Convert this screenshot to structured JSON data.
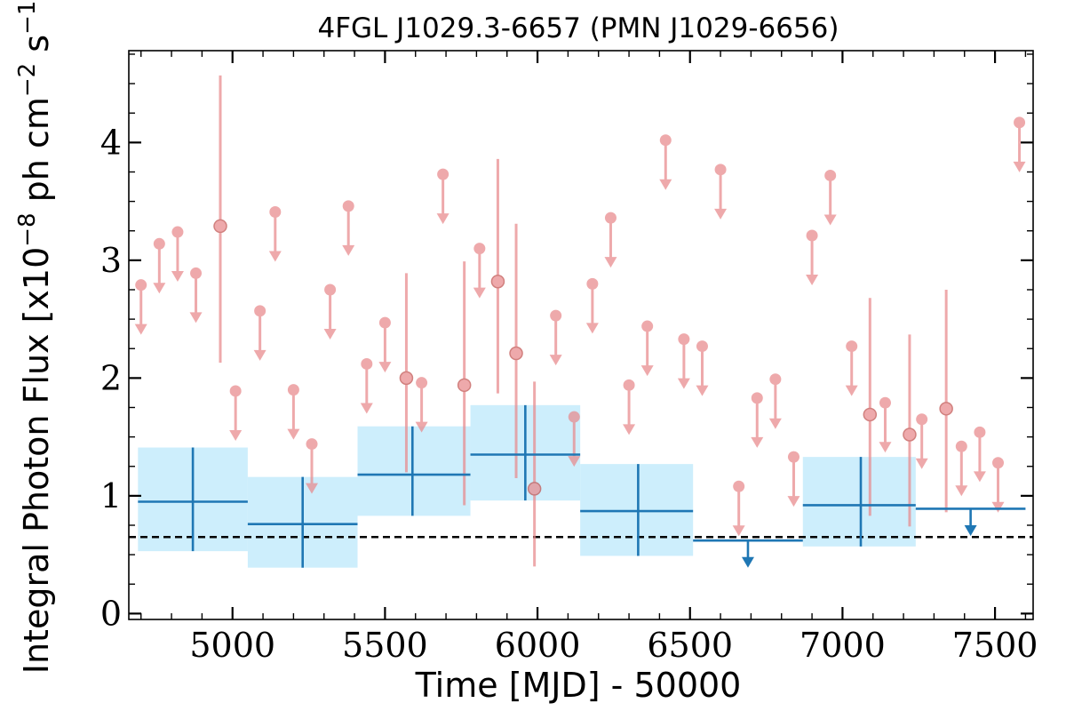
{
  "chart_data": {
    "type": "scatter",
    "title": "4FGL J1029.3-6657 (PMN J1029-6656)",
    "xlabel": "Time [MJD] - 50000",
    "ylabel_parts": {
      "prefix": "Integral Photon Flux [x10",
      "exp1": "−8",
      "mid": " ph cm",
      "exp2": "−2",
      "s": " s",
      "exp3": "−1",
      "suffix": "]"
    },
    "xlim": [
      4660,
      7625
    ],
    "ylim": [
      -0.05,
      4.78
    ],
    "xticks": [
      5000,
      5500,
      6000,
      6500,
      7000,
      7500
    ],
    "xtick_labels": [
      "5000",
      "5500",
      "6000",
      "6500",
      "7000",
      "7500"
    ],
    "yticks": [
      0,
      1,
      2,
      3,
      4
    ],
    "ytick_labels": [
      "0",
      "1",
      "2",
      "3",
      "4"
    ],
    "reference_line": {
      "y": 0.65,
      "style": "dashed",
      "color": "#000000"
    },
    "colors": {
      "short_bin": "#e8898c",
      "long_bin_line": "#1f77b4",
      "long_bin_fill": "#cdeefc",
      "reference": "#000000"
    },
    "short_bin_upper_limits": [
      {
        "x": 4700,
        "y": 2.79
      },
      {
        "x": 4760,
        "y": 3.14
      },
      {
        "x": 4820,
        "y": 3.24
      },
      {
        "x": 4880,
        "y": 2.89
      },
      {
        "x": 5010,
        "y": 1.89
      },
      {
        "x": 5090,
        "y": 2.57
      },
      {
        "x": 5140,
        "y": 3.41
      },
      {
        "x": 5200,
        "y": 1.9
      },
      {
        "x": 5260,
        "y": 1.44
      },
      {
        "x": 5320,
        "y": 2.75
      },
      {
        "x": 5380,
        "y": 3.46
      },
      {
        "x": 5440,
        "y": 2.12
      },
      {
        "x": 5500,
        "y": 2.47
      },
      {
        "x": 5620,
        "y": 1.96
      },
      {
        "x": 5690,
        "y": 3.73
      },
      {
        "x": 5810,
        "y": 3.1
      },
      {
        "x": 6060,
        "y": 2.53
      },
      {
        "x": 6120,
        "y": 1.67
      },
      {
        "x": 6180,
        "y": 2.8
      },
      {
        "x": 6240,
        "y": 3.36
      },
      {
        "x": 6300,
        "y": 1.94
      },
      {
        "x": 6360,
        "y": 2.44
      },
      {
        "x": 6420,
        "y": 4.02
      },
      {
        "x": 6480,
        "y": 2.33
      },
      {
        "x": 6540,
        "y": 2.27
      },
      {
        "x": 6600,
        "y": 3.77
      },
      {
        "x": 6660,
        "y": 1.08
      },
      {
        "x": 6720,
        "y": 1.83
      },
      {
        "x": 6780,
        "y": 1.99
      },
      {
        "x": 6840,
        "y": 1.33
      },
      {
        "x": 6900,
        "y": 3.21
      },
      {
        "x": 6960,
        "y": 3.72
      },
      {
        "x": 7030,
        "y": 2.27
      },
      {
        "x": 7140,
        "y": 1.79
      },
      {
        "x": 7260,
        "y": 1.65
      },
      {
        "x": 7390,
        "y": 1.42
      },
      {
        "x": 7450,
        "y": 1.54
      },
      {
        "x": 7510,
        "y": 1.28
      },
      {
        "x": 7580,
        "y": 4.17
      }
    ],
    "short_bin_detections": [
      {
        "x": 4960,
        "y": 3.29,
        "ylow": 2.13,
        "yhigh": 4.57
      },
      {
        "x": 5570,
        "y": 2.0,
        "ylow": 1.2,
        "yhigh": 2.89
      },
      {
        "x": 5760,
        "y": 1.94,
        "ylow": 0.92,
        "yhigh": 2.99
      },
      {
        "x": 5870,
        "y": 2.82,
        "ylow": 1.87,
        "yhigh": 3.86
      },
      {
        "x": 5930,
        "y": 2.21,
        "ylow": 1.15,
        "yhigh": 3.31
      },
      {
        "x": 5990,
        "y": 1.06,
        "ylow": 0.4,
        "yhigh": 1.97
      },
      {
        "x": 7090,
        "y": 1.69,
        "ylow": 0.83,
        "yhigh": 2.68
      },
      {
        "x": 7220,
        "y": 1.52,
        "ylow": 0.74,
        "yhigh": 2.37
      },
      {
        "x": 7340,
        "y": 1.74,
        "ylow": 0.86,
        "yhigh": 2.75
      }
    ],
    "long_bin_detections": [
      {
        "xlo": 4690,
        "xhi": 5050,
        "x": 4870,
        "y": 0.95,
        "ylow": 0.53,
        "yhigh": 1.41
      },
      {
        "xlo": 5050,
        "xhi": 5410,
        "x": 5230,
        "y": 0.76,
        "ylow": 0.39,
        "yhigh": 1.16
      },
      {
        "xlo": 5410,
        "xhi": 5780,
        "x": 5590,
        "y": 1.18,
        "ylow": 0.83,
        "yhigh": 1.59
      },
      {
        "xlo": 5780,
        "xhi": 6140,
        "x": 5960,
        "y": 1.35,
        "ylow": 0.96,
        "yhigh": 1.77
      },
      {
        "xlo": 6140,
        "xhi": 6510,
        "x": 6330,
        "y": 0.87,
        "ylow": 0.49,
        "yhigh": 1.27
      },
      {
        "xlo": 6870,
        "xhi": 7240,
        "x": 7060,
        "y": 0.92,
        "ylow": 0.57,
        "yhigh": 1.33
      }
    ],
    "long_bin_upper_limits": [
      {
        "xlo": 6510,
        "xhi": 6870,
        "x": 6690,
        "y": 0.62
      },
      {
        "xlo": 7240,
        "xhi": 7600,
        "x": 7420,
        "y": 0.89
      }
    ]
  }
}
